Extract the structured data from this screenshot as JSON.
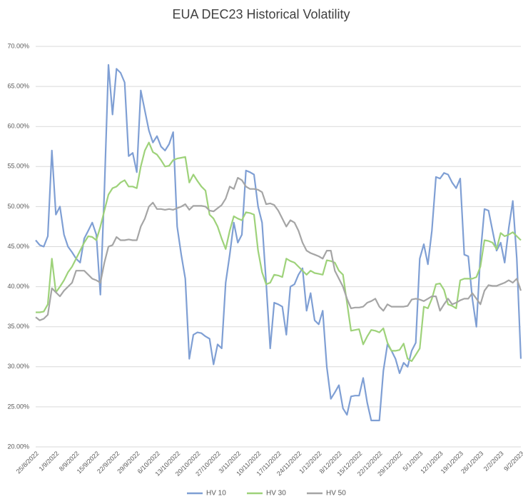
{
  "chart_data": {
    "type": "line",
    "title": "EUA DEC23 Historical Volatility",
    "categories": [
      "25/8/2022",
      null,
      null,
      null,
      null,
      "1/9/2022",
      null,
      null,
      null,
      null,
      "8/9/2022",
      null,
      null,
      null,
      null,
      "15/9/2022",
      null,
      null,
      null,
      null,
      "22/9/2022",
      null,
      null,
      null,
      null,
      "29/9/2022",
      null,
      null,
      null,
      null,
      "6/10/2022",
      null,
      null,
      null,
      null,
      "13/10/2022",
      null,
      null,
      null,
      null,
      "20/10/2022",
      null,
      null,
      null,
      null,
      "27/10/2022",
      null,
      null,
      null,
      null,
      "3/11/2022",
      null,
      null,
      null,
      null,
      "10/11/2022",
      null,
      null,
      null,
      null,
      "17/11/2022",
      null,
      null,
      null,
      null,
      "24/11/2022",
      null,
      null,
      null,
      null,
      "1/12/2022",
      null,
      null,
      null,
      null,
      "8/12/2022",
      null,
      null,
      null,
      null,
      "15/12/2022",
      null,
      null,
      null,
      null,
      "22/12/2022",
      null,
      null,
      null,
      null,
      "29/12/2022",
      null,
      null,
      null,
      null,
      "5/1/2023",
      null,
      null,
      null,
      null,
      "12/1/2023",
      null,
      null,
      null,
      null,
      "19/1/2023",
      null,
      null,
      null,
      null,
      "26/1/2023",
      null,
      null,
      null,
      null,
      "2/2/2023",
      null,
      null,
      null,
      null,
      "9/2/2023"
    ],
    "series": [
      {
        "name": "HV 10",
        "color": "#7f9fd4",
        "values": [
          45.8,
          45.2,
          45.0,
          46.3,
          57.0,
          49.0,
          50.0,
          46.5,
          45.0,
          44.3,
          43.5,
          43.0,
          46.0,
          47.0,
          48.0,
          46.5,
          39.0,
          52.0,
          67.7,
          61.5,
          67.2,
          66.7,
          65.5,
          56.3,
          56.7,
          54.3,
          64.5,
          62.0,
          59.5,
          58.0,
          58.8,
          57.5,
          57.0,
          57.8,
          59.3,
          47.5,
          44.0,
          41.0,
          31.0,
          34.0,
          34.3,
          34.2,
          33.8,
          33.5,
          30.3,
          32.8,
          32.3,
          40.5,
          44.0,
          48.0,
          45.5,
          46.5,
          54.5,
          54.3,
          54.0,
          50.0,
          48.0,
          40.5,
          32.3,
          38.0,
          37.8,
          37.5,
          34.0,
          40.0,
          40.3,
          41.5,
          42.3,
          37.0,
          39.2,
          35.8,
          35.3,
          37.0,
          30.0,
          26.0,
          26.8,
          27.7,
          24.8,
          24.0,
          26.3,
          26.4,
          26.4,
          28.6,
          25.5,
          23.3,
          23.3,
          23.3,
          29.5,
          32.8,
          32.0,
          31.0,
          29.2,
          30.5,
          30.0,
          32.0,
          33.0,
          43.5,
          45.3,
          42.8,
          47.0,
          53.7,
          53.5,
          54.2,
          54.0,
          53.0,
          52.3,
          53.5,
          44.0,
          43.8,
          38.5,
          35.0,
          44.0,
          49.7,
          49.5,
          47.0,
          44.5,
          45.5,
          43.0,
          47.3,
          50.7,
          43.5,
          31.0
        ]
      },
      {
        "name": "HV 30",
        "color": "#9ed27a",
        "values": [
          36.8,
          36.8,
          36.9,
          37.8,
          43.5,
          39.3,
          40.0,
          40.8,
          41.8,
          42.5,
          43.5,
          44.5,
          45.5,
          46.3,
          46.2,
          45.8,
          47.5,
          49.5,
          51.5,
          52.3,
          52.5,
          53.0,
          53.3,
          52.5,
          52.5,
          52.3,
          55.0,
          57.0,
          58.0,
          56.8,
          56.5,
          55.8,
          55.0,
          55.1,
          55.8,
          56.0,
          56.1,
          56.2,
          53.0,
          54.0,
          53.2,
          52.5,
          52.0,
          49.0,
          48.5,
          47.5,
          46.0,
          44.7,
          47.0,
          48.8,
          48.5,
          48.3,
          49.3,
          49.2,
          49.0,
          44.5,
          41.8,
          40.3,
          40.5,
          41.5,
          41.4,
          41.2,
          43.5,
          43.2,
          43.0,
          42.5,
          42.0,
          41.5,
          42.0,
          41.7,
          41.6,
          41.5,
          43.3,
          43.2,
          43.0,
          42.0,
          41.5,
          38.0,
          34.5,
          34.6,
          34.7,
          32.8,
          33.8,
          34.6,
          34.5,
          34.3,
          34.8,
          33.0,
          32.0,
          32.0,
          32.1,
          32.9,
          31.0,
          30.7,
          31.5,
          32.3,
          37.5,
          37.3,
          38.5,
          40.3,
          40.4,
          39.6,
          37.8,
          37.6,
          37.3,
          40.8,
          41.0,
          41.0,
          41.0,
          41.2,
          42.5,
          45.8,
          45.7,
          45.5,
          44.7,
          46.7,
          46.3,
          46.5,
          46.8,
          46.3,
          45.8
        ]
      },
      {
        "name": "HV 50",
        "color": "#a5a5a5",
        "values": [
          36.2,
          35.8,
          36.0,
          36.5,
          39.8,
          39.3,
          38.8,
          39.5,
          40.0,
          40.5,
          42.0,
          42.0,
          42.0,
          41.5,
          41.0,
          40.8,
          40.5,
          43.0,
          45.0,
          45.2,
          46.2,
          45.8,
          45.8,
          45.9,
          45.8,
          45.8,
          47.5,
          48.5,
          50.0,
          50.5,
          49.7,
          49.7,
          49.6,
          49.7,
          49.6,
          49.8,
          50.0,
          50.3,
          49.6,
          50.1,
          50.1,
          50.1,
          50.0,
          49.5,
          49.4,
          49.8,
          50.2,
          51.0,
          52.5,
          52.2,
          53.6,
          53.3,
          52.5,
          52.2,
          52.2,
          52.1,
          51.8,
          50.3,
          50.4,
          50.2,
          49.5,
          48.5,
          47.5,
          48.3,
          48.0,
          47.0,
          45.5,
          44.5,
          44.2,
          44.0,
          43.8,
          43.5,
          44.5,
          44.5,
          42.0,
          41.0,
          40.0,
          38.5,
          37.3,
          37.4,
          37.4,
          37.5,
          38.0,
          38.2,
          38.5,
          37.5,
          37.0,
          37.8,
          37.5,
          37.5,
          37.5,
          37.5,
          37.6,
          38.4,
          38.5,
          38.4,
          38.2,
          38.5,
          38.8,
          38.8,
          37.0,
          37.8,
          38.5,
          37.8,
          38.0,
          38.3,
          38.5,
          38.5,
          39.2,
          38.5,
          37.8,
          39.5,
          40.2,
          40.1,
          40.1,
          40.3,
          40.5,
          40.8,
          40.5,
          41.0,
          39.5
        ]
      }
    ],
    "ylim": [
      20,
      70
    ],
    "yticks": [
      {
        "value": 20,
        "label": "20.00%"
      },
      {
        "value": 25,
        "label": "25.00%"
      },
      {
        "value": 30,
        "label": "30.00%"
      },
      {
        "value": 35,
        "label": "35.00%"
      },
      {
        "value": 40,
        "label": "40.00%"
      },
      {
        "value": 45,
        "label": "45.00%"
      },
      {
        "value": 50,
        "label": "50.00%"
      },
      {
        "value": 55,
        "label": "55.00%"
      },
      {
        "value": 60,
        "label": "60.00%"
      },
      {
        "value": 65,
        "label": "65.00%"
      },
      {
        "value": 70,
        "label": "70.00%"
      }
    ],
    "grid": true,
    "legend": "bottom"
  }
}
